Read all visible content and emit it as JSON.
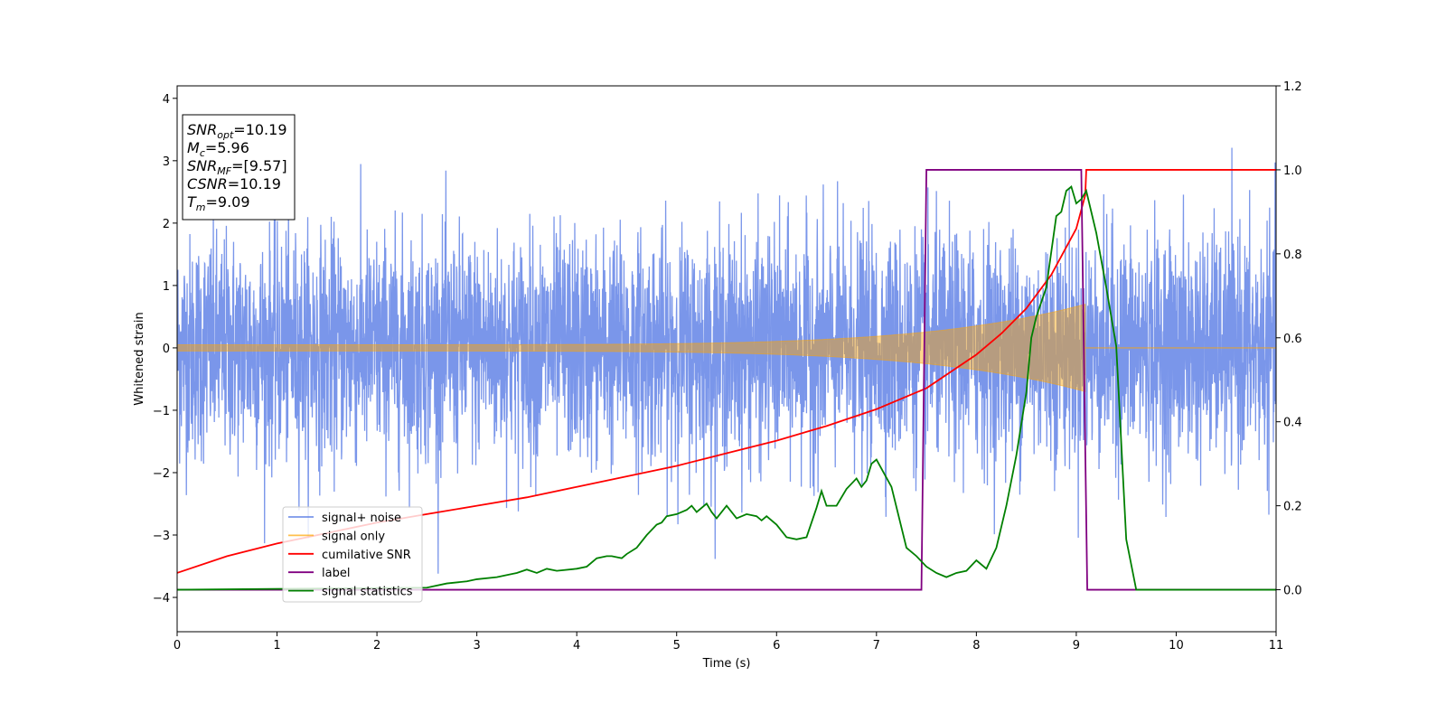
{
  "chart_data": {
    "type": "line",
    "xlabel": "Time (s)",
    "ylabel": "Whitened strain",
    "xlim": [
      0,
      11
    ],
    "ylim": [
      -4.55,
      4.2
    ],
    "y2lim": [
      -0.1,
      1.2
    ],
    "xticks": [
      "0",
      "1",
      "2",
      "3",
      "4",
      "5",
      "6",
      "7",
      "8",
      "9",
      "10",
      "11"
    ],
    "yticks": [
      "−4",
      "−3",
      "−2",
      "−1",
      "0",
      "1",
      "2",
      "3",
      "4"
    ],
    "y2ticks": [
      "0.0",
      "0.2",
      "0.4",
      "0.6",
      "0.8",
      "1.0",
      "1.2"
    ],
    "grid": false,
    "legend_position": "bottom-left",
    "info_box": {
      "position": "top-left",
      "lines": [
        {
          "var": "SNR",
          "sub": "opt",
          "value": "=10.19"
        },
        {
          "var": "M",
          "sub": "c",
          "value": "=5.96"
        },
        {
          "var": "SNR",
          "sub": "MF",
          "value": "=[9.57]"
        },
        {
          "var": "CSNR",
          "sub": "",
          "value": "=10.19"
        },
        {
          "var": "T",
          "sub": "m",
          "value": "=9.09"
        }
      ]
    },
    "series": [
      {
        "name": "signal+ noise",
        "color": "#4169e1",
        "axis": "left",
        "style": "noise",
        "description_stats": {
          "std": 0.9,
          "min": -4.0,
          "max": 3.6
        }
      },
      {
        "name": "signal only",
        "color": "#ffa500",
        "axis": "left",
        "style": "chirp",
        "amplitude_start": 0.05,
        "amplitude_end": 0.7,
        "merger_time": 9.09
      },
      {
        "name": "cumilative SNR",
        "color": "#ff0000",
        "axis": "right",
        "x": [
          0,
          0.5,
          1,
          1.5,
          2,
          2.5,
          3,
          3.5,
          4,
          4.5,
          5,
          5.5,
          6,
          6.5,
          7,
          7.5,
          8,
          8.25,
          8.5,
          8.75,
          9.0,
          9.09,
          9.1,
          11
        ],
        "y": [
          0.04,
          0.08,
          0.11,
          0.135,
          0.16,
          0.18,
          0.2,
          0.22,
          0.245,
          0.27,
          0.295,
          0.325,
          0.355,
          0.39,
          0.43,
          0.48,
          0.56,
          0.61,
          0.67,
          0.75,
          0.86,
          0.94,
          1.0,
          1.0
        ]
      },
      {
        "name": "label",
        "color": "#800080",
        "axis": "right",
        "x": [
          0,
          7.45,
          7.5,
          9.05,
          9.11,
          11
        ],
        "y": [
          0,
          0,
          1,
          1,
          0,
          0
        ]
      },
      {
        "name": "signal statistics",
        "color": "#008000",
        "axis": "right",
        "x": [
          0,
          2.5,
          2.7,
          2.9,
          3.0,
          3.2,
          3.4,
          3.5,
          3.6,
          3.7,
          3.8,
          4.0,
          4.1,
          4.2,
          4.3,
          4.35,
          4.45,
          4.5,
          4.6,
          4.7,
          4.8,
          4.85,
          4.9,
          5.0,
          5.1,
          5.15,
          5.2,
          5.3,
          5.35,
          5.4,
          5.5,
          5.55,
          5.6,
          5.7,
          5.8,
          5.85,
          5.9,
          6.0,
          6.1,
          6.2,
          6.3,
          6.35,
          6.4,
          6.45,
          6.5,
          6.6,
          6.7,
          6.8,
          6.85,
          6.9,
          6.95,
          7.0,
          7.15,
          7.3,
          7.4,
          7.5,
          7.6,
          7.7,
          7.8,
          7.9,
          8.0,
          8.1,
          8.2,
          8.3,
          8.4,
          8.5,
          8.55,
          8.6,
          8.7,
          8.8,
          8.85,
          8.9,
          8.95,
          9.0,
          9.05,
          9.1,
          9.15,
          9.2,
          9.3,
          9.4,
          9.5,
          9.6,
          11
        ],
        "y": [
          0,
          0.005,
          0.015,
          0.02,
          0.025,
          0.03,
          0.04,
          0.048,
          0.04,
          0.05,
          0.045,
          0.05,
          0.055,
          0.075,
          0.08,
          0.08,
          0.075,
          0.085,
          0.1,
          0.13,
          0.155,
          0.16,
          0.175,
          0.18,
          0.19,
          0.2,
          0.185,
          0.205,
          0.185,
          0.17,
          0.2,
          0.185,
          0.17,
          0.18,
          0.175,
          0.165,
          0.175,
          0.155,
          0.125,
          0.12,
          0.125,
          0.16,
          0.195,
          0.235,
          0.2,
          0.2,
          0.24,
          0.265,
          0.245,
          0.26,
          0.3,
          0.31,
          0.245,
          0.1,
          0.08,
          0.055,
          0.04,
          0.03,
          0.04,
          0.045,
          0.07,
          0.05,
          0.1,
          0.2,
          0.32,
          0.47,
          0.6,
          0.65,
          0.72,
          0.89,
          0.9,
          0.95,
          0.96,
          0.92,
          0.93,
          0.95,
          0.9,
          0.85,
          0.72,
          0.58,
          0.12,
          0.0,
          0.0
        ]
      }
    ]
  }
}
